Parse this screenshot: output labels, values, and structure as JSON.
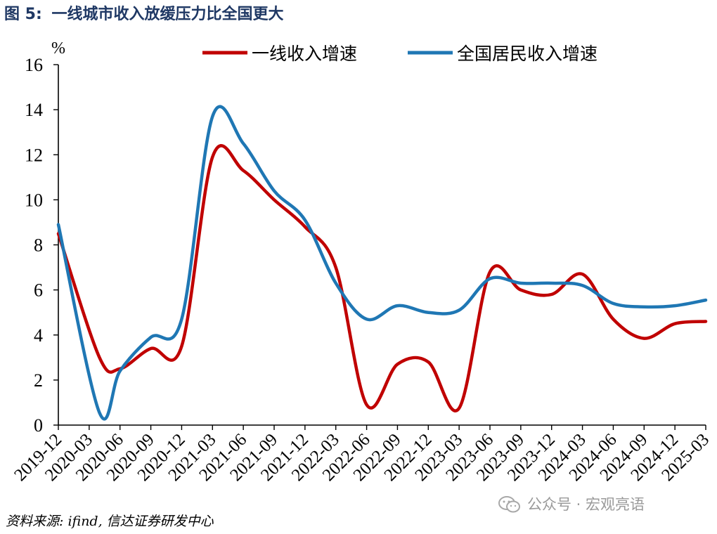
{
  "figure": {
    "label": "图 5:",
    "title": "一线城市收入放缓压力比全国更大"
  },
  "source_note": "资料来源: ifind, 信达证券研发中心",
  "watermark": "公众号 · 宏观亮语",
  "chart_data": {
    "type": "line",
    "yunit": "%",
    "ylim": [
      0,
      16
    ],
    "yticks": [
      0,
      2,
      4,
      6,
      8,
      10,
      12,
      14,
      16
    ],
    "x": [
      "2019-12",
      "2020-01",
      "2020-02",
      "2020-03",
      "2020-04",
      "2020-05",
      "2020-06",
      "2020-07",
      "2020-08",
      "2020-09",
      "2020-10",
      "2020-11",
      "2020-12",
      "2021-01",
      "2021-02",
      "2021-03",
      "2021-04",
      "2021-05",
      "2021-06",
      "2021-07",
      "2021-08",
      "2021-09",
      "2021-10",
      "2021-11",
      "2021-12",
      "2022-01",
      "2022-02",
      "2022-03",
      "2022-04",
      "2022-05",
      "2022-06",
      "2022-07",
      "2022-08",
      "2022-09",
      "2022-10",
      "2022-11",
      "2022-12",
      "2023-01",
      "2023-02",
      "2023-03",
      "2023-04",
      "2023-05",
      "2023-06",
      "2023-07",
      "2023-08",
      "2023-09",
      "2023-10",
      "2023-11",
      "2023-12",
      "2024-01",
      "2024-02",
      "2024-03",
      "2024-04",
      "2024-05",
      "2024-06",
      "2024-07",
      "2024-08",
      "2024-09",
      "2024-10",
      "2024-11",
      "2024-12",
      "2025-01",
      "2025-02",
      "2025-03"
    ],
    "tick_labels": [
      "2019-12",
      "2020-03",
      "2020-06",
      "2020-09",
      "2020-12",
      "2021-03",
      "2021-06",
      "2021-09",
      "2021-12",
      "2022-03",
      "2022-06",
      "2022-09",
      "2022-12",
      "2023-03",
      "2023-06",
      "2023-09",
      "2023-12",
      "2024-03",
      "2024-06",
      "2024-09",
      "2024-12",
      "2025-03"
    ],
    "legend_position": "top",
    "grid": false,
    "series": [
      {
        "name": "一线收入增速",
        "color": "#c00000",
        "points": [
          {
            "x": "2019-12",
            "y": 8.5
          },
          {
            "x": "2020-04",
            "y": 3.0
          },
          {
            "x": "2020-06",
            "y": 2.5
          },
          {
            "x": "2020-09",
            "y": 3.4
          },
          {
            "x": "2020-12",
            "y": 3.5
          },
          {
            "x": "2021-03",
            "y": 11.9
          },
          {
            "x": "2021-06",
            "y": 11.3
          },
          {
            "x": "2021-09",
            "y": 10.0
          },
          {
            "x": "2021-12",
            "y": 8.8
          },
          {
            "x": "2022-03",
            "y": 7.0
          },
          {
            "x": "2022-06",
            "y": 0.9
          },
          {
            "x": "2022-09",
            "y": 2.7
          },
          {
            "x": "2022-12",
            "y": 2.8
          },
          {
            "x": "2023-03",
            "y": 0.75
          },
          {
            "x": "2023-06",
            "y": 6.8
          },
          {
            "x": "2023-09",
            "y": 6.0
          },
          {
            "x": "2023-12",
            "y": 5.8
          },
          {
            "x": "2024-03",
            "y": 6.7
          },
          {
            "x": "2024-06",
            "y": 4.7
          },
          {
            "x": "2024-09",
            "y": 3.85
          },
          {
            "x": "2024-12",
            "y": 4.5
          },
          {
            "x": "2025-03",
            "y": 4.6
          }
        ]
      },
      {
        "name": "全国居民收入增速",
        "color": "#1f77b4",
        "points": [
          {
            "x": "2019-12",
            "y": 8.9
          },
          {
            "x": "2020-04",
            "y": 0.55
          },
          {
            "x": "2020-06",
            "y": 2.4
          },
          {
            "x": "2020-09",
            "y": 3.9
          },
          {
            "x": "2020-12",
            "y": 4.7
          },
          {
            "x": "2021-03",
            "y": 13.7
          },
          {
            "x": "2021-06",
            "y": 12.5
          },
          {
            "x": "2021-09",
            "y": 10.4
          },
          {
            "x": "2021-12",
            "y": 9.1
          },
          {
            "x": "2022-03",
            "y": 6.3
          },
          {
            "x": "2022-06",
            "y": 4.7
          },
          {
            "x": "2022-09",
            "y": 5.3
          },
          {
            "x": "2022-12",
            "y": 5.0
          },
          {
            "x": "2023-03",
            "y": 5.1
          },
          {
            "x": "2023-06",
            "y": 6.5
          },
          {
            "x": "2023-09",
            "y": 6.3
          },
          {
            "x": "2023-12",
            "y": 6.3
          },
          {
            "x": "2024-03",
            "y": 6.2
          },
          {
            "x": "2024-06",
            "y": 5.4
          },
          {
            "x": "2024-09",
            "y": 5.25
          },
          {
            "x": "2024-12",
            "y": 5.3
          },
          {
            "x": "2025-03",
            "y": 5.55
          }
        ]
      }
    ]
  }
}
